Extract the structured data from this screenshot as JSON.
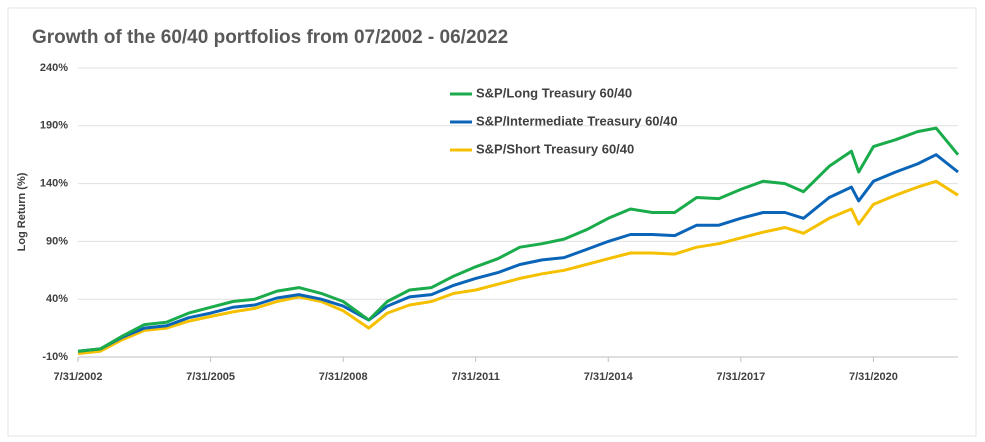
{
  "chart_data": {
    "type": "line",
    "title": "Growth of the 60/40 portfolios from 07/2002 - 06/2022",
    "y_label": "Log Return (%)",
    "x": [
      "7/31/2002",
      "1/31/2003",
      "7/31/2003",
      "1/31/2004",
      "7/31/2004",
      "1/31/2005",
      "7/31/2005",
      "1/31/2006",
      "7/31/2006",
      "1/31/2007",
      "7/31/2007",
      "1/31/2008",
      "7/31/2008",
      "2/28/2009",
      "7/31/2009",
      "1/31/2010",
      "7/31/2010",
      "1/31/2011",
      "7/31/2011",
      "1/31/2012",
      "7/31/2012",
      "1/31/2013",
      "7/31/2013",
      "1/31/2014",
      "7/31/2014",
      "1/31/2015",
      "7/31/2015",
      "1/31/2016",
      "7/31/2016",
      "1/31/2017",
      "7/31/2017",
      "1/31/2018",
      "7/31/2018",
      "12/31/2018",
      "7/31/2019",
      "1/31/2020",
      "3/31/2020",
      "7/31/2020",
      "1/31/2021",
      "7/31/2021",
      "12/31/2021",
      "6/30/2022"
    ],
    "series": [
      {
        "name": "S&P/Long Treasury 60/40",
        "color": "#1aab4b",
        "values": [
          -5,
          -3,
          8,
          18,
          20,
          28,
          33,
          38,
          40,
          47,
          50,
          45,
          38,
          22,
          38,
          48,
          50,
          60,
          68,
          75,
          85,
          88,
          92,
          100,
          110,
          118,
          115,
          115,
          128,
          127,
          135,
          142,
          140,
          133,
          155,
          168,
          150,
          172,
          178,
          185,
          188,
          165
        ]
      },
      {
        "name": "S&P/Intermediate Treasury 60/40",
        "color": "#0a64b8",
        "values": [
          -5,
          -3,
          7,
          15,
          17,
          24,
          28,
          33,
          35,
          41,
          44,
          40,
          34,
          22,
          34,
          42,
          44,
          52,
          58,
          63,
          70,
          74,
          76,
          83,
          90,
          96,
          96,
          95,
          104,
          104,
          110,
          115,
          115,
          110,
          128,
          137,
          125,
          142,
          150,
          157,
          165,
          150
        ]
      },
      {
        "name": "S&P/Short Treasury 60/40",
        "color": "#f5c000",
        "values": [
          -7,
          -5,
          5,
          13,
          15,
          21,
          25,
          29,
          32,
          38,
          42,
          38,
          30,
          15,
          28,
          35,
          38,
          45,
          48,
          53,
          58,
          62,
          65,
          70,
          75,
          80,
          80,
          79,
          85,
          88,
          93,
          98,
          102,
          97,
          110,
          118,
          105,
          122,
          130,
          137,
          142,
          130
        ]
      }
    ],
    "xlim": [
      "7/31/2002",
      "6/30/2022"
    ],
    "xticks": [
      "7/31/2002",
      "7/31/2005",
      "7/31/2008",
      "7/31/2011",
      "7/31/2014",
      "7/31/2017",
      "7/31/2020"
    ],
    "ylim": [
      -10,
      240
    ],
    "yticks": [
      {
        "value": -10,
        "label": "-10%"
      },
      {
        "value": 40,
        "label": "40%"
      },
      {
        "value": 90,
        "label": "90%"
      },
      {
        "value": 140,
        "label": "140%"
      },
      {
        "value": 190,
        "label": "190%"
      },
      {
        "value": 240,
        "label": "240%"
      }
    ],
    "grid": true
  }
}
